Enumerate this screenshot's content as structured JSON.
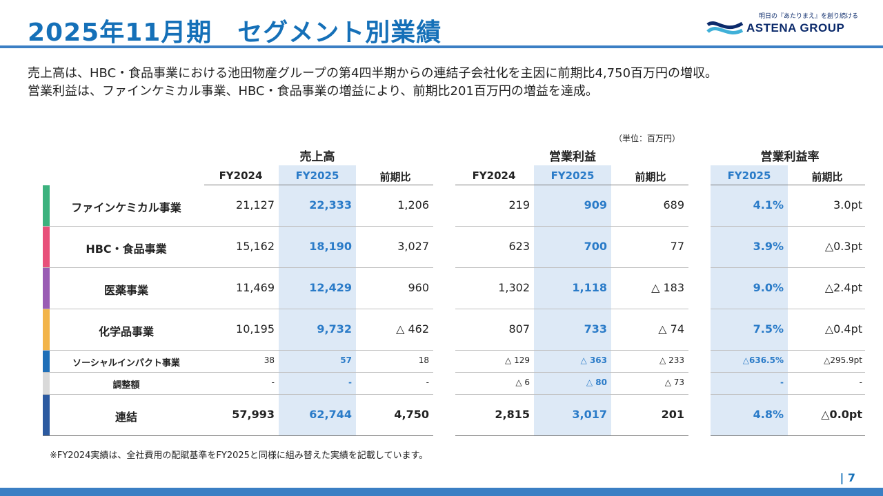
{
  "title": "2025年11月期　セグメント別業績",
  "logo": {
    "tagline": "明日の『あたりまえ』を創り続ける",
    "name": "ASTENA GROUP"
  },
  "summary": [
    "売上高は、HBC・食品事業における池田物産グループの第4四半期からの連結子会社化を主因に前期比4,750百万円の増収。",
    "営業利益は、ファインケミカル事業、HBC・食品事業の増益により、前期比201百万円の増益を達成。"
  ],
  "unit": "（単位：百万円）",
  "groups": {
    "sales": "売上高",
    "op_profit": "営業利益",
    "op_margin": "営業利益率"
  },
  "columns": {
    "fy2024": "FY2024",
    "fy2025": "FY2025",
    "yoy": "前期比",
    "fy2024_b": "FY2024",
    "fy2025_b": "FY2025",
    "yoy_b": "前期比",
    "fy2025_c": "FY2025",
    "yoy_c": "前期比"
  },
  "rows": [
    {
      "label": "ファインケミカル事業",
      "color": "#3cb27e",
      "s24": "21,127",
      "s25": "22,333",
      "sy": "1,206",
      "o24": "219",
      "o25": "909",
      "oy": "689",
      "m25": "4.1%",
      "my": "3.0pt"
    },
    {
      "label": "HBC・食品事業",
      "color": "#e8507a",
      "s24": "15,162",
      "s25": "18,190",
      "sy": "3,027",
      "o24": "623",
      "o25": "700",
      "oy": "77",
      "m25": "3.9%",
      "my": "△0.3pt"
    },
    {
      "label": "医薬事業",
      "color": "#9a5cb4",
      "s24": "11,469",
      "s25": "12,429",
      "sy": "960",
      "o24": "1,302",
      "o25": "1,118",
      "oy": "△ 183",
      "m25": "9.0%",
      "my": "△2.4pt"
    },
    {
      "label": "化学品事業",
      "color": "#f2b44a",
      "s24": "10,195",
      "s25": "9,732",
      "sy": "△ 462",
      "o24": "807",
      "o25": "733",
      "oy": "△ 74",
      "m25": "7.5%",
      "my": "△0.4pt"
    },
    {
      "label": "ソーシャルインパクト事業",
      "color": "#1f6fb8",
      "s24": "38",
      "s25": "57",
      "sy": "18",
      "o24": "△ 129",
      "o25": "△ 363",
      "oy": "△ 233",
      "m25": "△636.5%",
      "my": "△295.9pt"
    },
    {
      "label": "調整額",
      "color": "#d9d9d9",
      "s24": "-",
      "s25": "-",
      "sy": "-",
      "o24": "△ 6",
      "o25": "△ 80",
      "oy": "△ 73",
      "m25": "-",
      "my": "-"
    },
    {
      "label": "連結",
      "color": "#2c5aa0",
      "s24": "57,993",
      "s25": "62,744",
      "sy": "4,750",
      "o24": "2,815",
      "o25": "3,017",
      "oy": "201",
      "m25": "4.8%",
      "my": "△0.0pt"
    }
  ],
  "footnote": "※FY2024実績は、全社費用の配賦基準をFY2025と同様に組み替えた実績を記載しています。",
  "page": "|  7"
}
